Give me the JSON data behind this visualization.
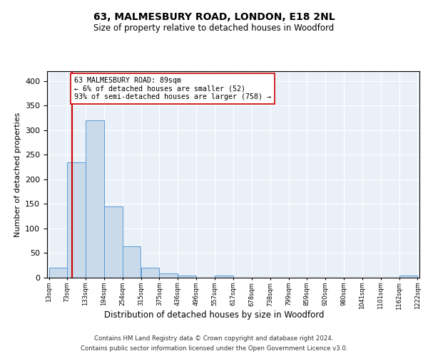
{
  "title1": "63, MALMESBURY ROAD, LONDON, E18 2NL",
  "title2": "Size of property relative to detached houses in Woodford",
  "xlabel": "Distribution of detached houses by size in Woodford",
  "ylabel": "Number of detached properties",
  "bar_left_edges": [
    13,
    73,
    133,
    194,
    254,
    315,
    375,
    436,
    496,
    557,
    617,
    678,
    738,
    799,
    859,
    920,
    980,
    1041,
    1101,
    1162
  ],
  "bar_heights": [
    20,
    235,
    320,
    145,
    64,
    20,
    8,
    5,
    0,
    5,
    0,
    0,
    0,
    0,
    0,
    0,
    0,
    0,
    0,
    4
  ],
  "bin_width": 60,
  "bar_color": "#c9daea",
  "bar_edge_color": "#5b9bd5",
  "property_line_x": 89,
  "property_line_color": "#cc0000",
  "annotation_text": "63 MALMESBURY ROAD: 89sqm\n← 6% of detached houses are smaller (52)\n93% of semi-detached houses are larger (758) →",
  "annotation_box_color": "#ffffff",
  "annotation_box_edge": "#cc0000",
  "ylim": [
    0,
    420
  ],
  "yticks": [
    0,
    50,
    100,
    150,
    200,
    250,
    300,
    350,
    400
  ],
  "tick_labels": [
    "13sqm",
    "73sqm",
    "133sqm",
    "194sqm",
    "254sqm",
    "315sqm",
    "375sqm",
    "436sqm",
    "496sqm",
    "557sqm",
    "617sqm",
    "678sqm",
    "738sqm",
    "799sqm",
    "859sqm",
    "920sqm",
    "980sqm",
    "1041sqm",
    "1101sqm",
    "1162sqm",
    "1222sqm"
  ],
  "footer1": "Contains HM Land Registry data © Crown copyright and database right 2024.",
  "footer2": "Contains public sector information licensed under the Open Government Licence v3.0.",
  "bg_color": "#eaf0f8",
  "fig_bg_color": "#ffffff"
}
